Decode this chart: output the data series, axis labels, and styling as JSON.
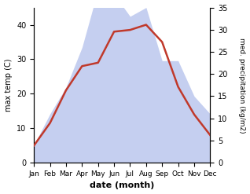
{
  "months": [
    "Jan",
    "Feb",
    "Mar",
    "Apr",
    "May",
    "Jun",
    "Jul",
    "Aug",
    "Sep",
    "Oct",
    "Nov",
    "Dec"
  ],
  "max_temp": [
    5,
    11.5,
    21,
    28,
    29,
    38,
    38.5,
    40,
    35,
    22,
    14,
    8
  ],
  "precipitation": [
    4,
    11,
    17,
    26,
    39,
    38,
    33,
    35,
    23,
    23,
    15,
    11
  ],
  "temp_color": "#c0392b",
  "precip_fill_color": "#c5cff0",
  "temp_ylim": [
    0,
    45
  ],
  "precip_ylim": [
    0,
    35
  ],
  "temp_yticks": [
    0,
    10,
    20,
    30,
    40
  ],
  "precip_yticks": [
    0,
    5,
    10,
    15,
    20,
    25,
    30,
    35
  ],
  "xlabel": "date (month)",
  "ylabel_left": "max temp (C)",
  "ylabel_right": "med. precipitation (kg/m2)",
  "fig_width": 3.18,
  "fig_height": 2.47,
  "dpi": 100
}
